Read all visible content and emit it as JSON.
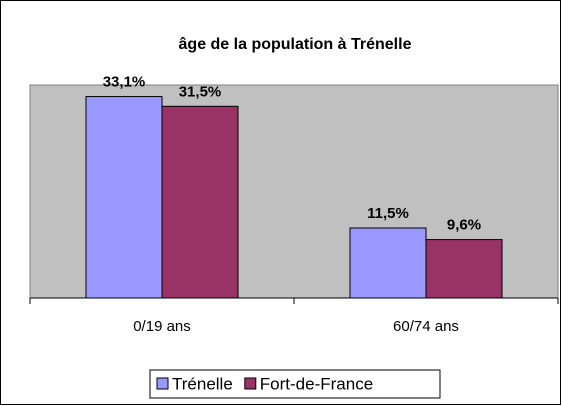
{
  "chart_data": {
    "type": "bar",
    "title": "âge de la population à Trénelle",
    "categories": [
      "0/19 ans",
      "60/74 ans"
    ],
    "series": [
      {
        "name": "Trénelle",
        "color": "#9999ff",
        "values": [
          33.1,
          11.5
        ],
        "value_labels": [
          "33,1%",
          "11,5%"
        ]
      },
      {
        "name": "Fort-de-France",
        "color": "#993366",
        "values": [
          31.5,
          9.6
        ],
        "value_labels": [
          "31,5%",
          "9,6%"
        ]
      }
    ],
    "ylim": [
      0,
      35
    ],
    "grid": false,
    "legend": "bottom",
    "plot_background": "#c0c0c0"
  }
}
